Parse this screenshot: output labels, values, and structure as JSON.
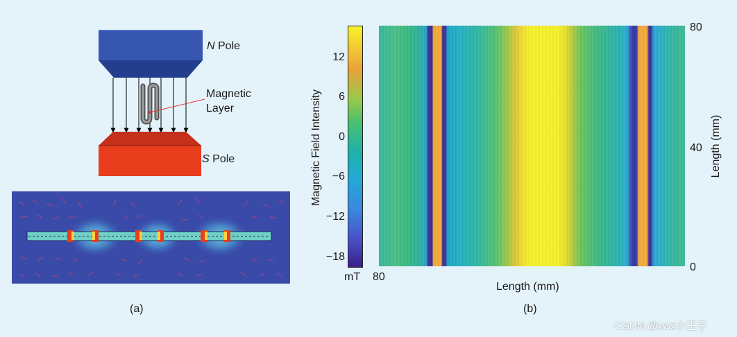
{
  "panel_a": {
    "n_pole_italic": "N",
    "n_pole_text": " Pole",
    "s_pole_italic": "S",
    "s_pole_text": " Pole",
    "magnetic_layer_line1": "Magnetic",
    "magnetic_layer_line2": "Layer",
    "caption": "(a)"
  },
  "panel_b": {
    "caption": "(b)",
    "colorbar": {
      "label": "Magnetic Field Intensity",
      "unit": "mT",
      "ticks": [
        "12",
        "6",
        "0",
        "−6",
        "−12",
        "−18"
      ]
    },
    "xlabel": "Length (mm)",
    "x_tick_left": "80",
    "ylabel": "Length (mm)",
    "y_ticks": [
      "80",
      "40",
      "0"
    ]
  },
  "watermark": "CSDN @xwz小王子",
  "colors": {
    "background": "#e4f2f9",
    "n_pole": "#2e4fa6",
    "s_pole": "#e83e1e",
    "field_line_color": "#000000",
    "pointer_line": "#e0393a"
  }
}
